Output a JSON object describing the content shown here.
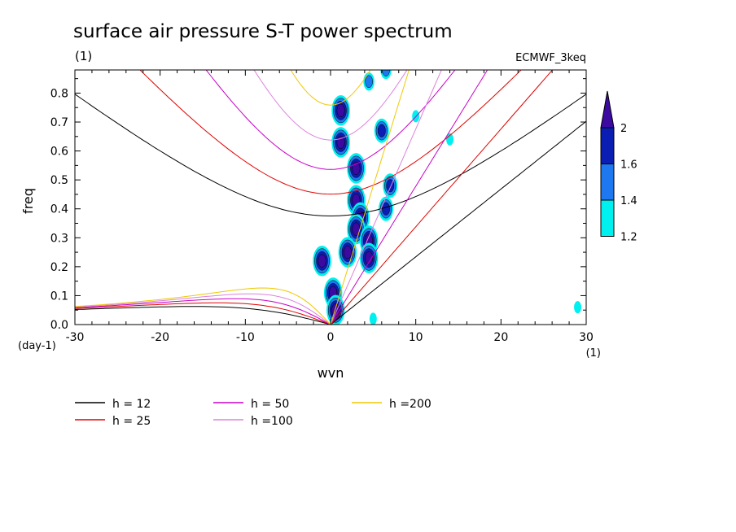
{
  "chart_data": {
    "type": "heatmap",
    "title": "surface air pressure S-T power spectrum",
    "subtitle_left": "(1)",
    "subtitle_right": "ECMWF_3keq",
    "xlabel": "wvn",
    "ylabel": "freq",
    "x_unit": "(1)",
    "y_unit": "(day-1)",
    "xlim": [
      -30,
      30
    ],
    "ylim": [
      0,
      0.88
    ],
    "x_ticks": [
      -30,
      -20,
      -10,
      0,
      10,
      20,
      30
    ],
    "x_tick_labels": [
      "-30",
      "-20",
      "-10",
      "0",
      "10",
      "20",
      "30"
    ],
    "y_ticks": [
      0,
      0.1,
      0.2,
      0.3,
      0.4,
      0.5,
      0.6,
      0.7,
      0.8
    ],
    "y_tick_labels": [
      "0.0",
      "0.1",
      "0.2",
      "0.3",
      "0.4",
      "0.5",
      "0.6",
      "0.7",
      "0.8"
    ],
    "colorbar": {
      "levels": [
        1.2,
        1.4,
        1.6,
        2
      ],
      "labels": [
        "1.2",
        "1.4",
        "1.6",
        "2"
      ],
      "colors": [
        "#00f0f0",
        "#1e78f0",
        "#0a1eb4",
        "#3c0aa0"
      ]
    },
    "dispersion_curves": {
      "equivalent_depths_m": [
        12,
        25,
        50,
        100,
        200
      ],
      "colors": [
        "#000000",
        "#e00000",
        "#c800c8",
        "#dc82dc",
        "#f0c800"
      ],
      "families": [
        "kelvin",
        "eig0",
        "er_n1",
        "ig_n1"
      ]
    },
    "legend": [
      {
        "label": "h = 12",
        "color": "#000000"
      },
      {
        "label": "h = 25",
        "color": "#e00000"
      },
      {
        "label": "h = 50",
        "color": "#c800c8"
      },
      {
        "label": "h =100",
        "color": "#dc82dc"
      },
      {
        "label": "h =200",
        "color": "#f0c800"
      }
    ],
    "legend_placement": "below",
    "grid": false,
    "spectral_peaks": [
      {
        "wvn": 0.3,
        "freq": 0.11,
        "level": 2
      },
      {
        "wvn": 0.6,
        "freq": 0.05,
        "level": 2
      },
      {
        "wvn": 1.2,
        "freq": 0.74,
        "level": 2
      },
      {
        "wvn": 1.2,
        "freq": 0.63,
        "level": 2
      },
      {
        "wvn": 3.0,
        "freq": 0.54,
        "level": 2
      },
      {
        "wvn": 3.0,
        "freq": 0.43,
        "level": 2
      },
      {
        "wvn": 3.5,
        "freq": 0.37,
        "level": 2
      },
      {
        "wvn": 3.0,
        "freq": 0.33,
        "level": 2
      },
      {
        "wvn": 4.5,
        "freq": 0.29,
        "level": 2
      },
      {
        "wvn": 4.5,
        "freq": 0.23,
        "level": 2
      },
      {
        "wvn": -1.0,
        "freq": 0.22,
        "level": 2
      },
      {
        "wvn": 2.0,
        "freq": 0.25,
        "level": 2
      },
      {
        "wvn": 7.0,
        "freq": 0.48,
        "level": 1.6
      },
      {
        "wvn": 6.5,
        "freq": 0.4,
        "level": 1.6
      },
      {
        "wvn": 6.0,
        "freq": 0.67,
        "level": 1.6
      },
      {
        "wvn": 4.5,
        "freq": 0.84,
        "level": 1.4
      },
      {
        "wvn": 6.5,
        "freq": 0.88,
        "level": 1.4
      },
      {
        "wvn": 10.0,
        "freq": 0.72,
        "level": 1.2
      },
      {
        "wvn": 14.0,
        "freq": 0.64,
        "level": 1.2
      },
      {
        "wvn": 5.0,
        "freq": 0.02,
        "level": 1.2
      },
      {
        "wvn": 29.0,
        "freq": 0.06,
        "level": 1.2
      }
    ]
  }
}
